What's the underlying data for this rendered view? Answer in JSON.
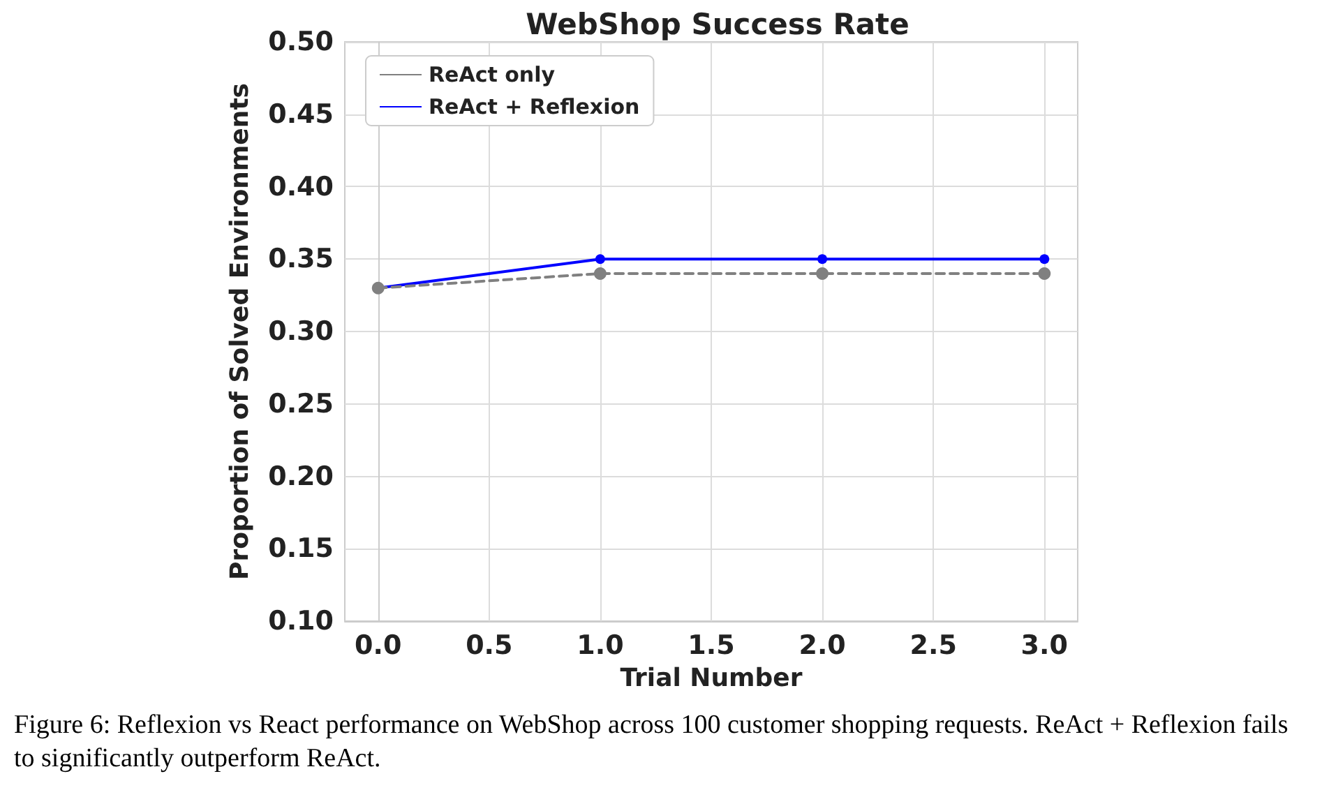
{
  "chart_data": {
    "type": "line",
    "title": "WebShop Success Rate",
    "xlabel": "Trial Number",
    "ylabel": "Proportion of Solved Environments",
    "x": [
      0,
      1,
      2,
      3
    ],
    "series": [
      {
        "name": "ReAct only",
        "color": "#808080",
        "line_style": "dashed",
        "values": [
          0.33,
          0.34,
          0.34,
          0.34
        ]
      },
      {
        "name": "ReAct + Reflexion",
        "color": "#0000ff",
        "line_style": "solid",
        "values": [
          0.33,
          0.35,
          0.35,
          0.35
        ]
      }
    ],
    "xlim": [
      -0.15,
      3.15
    ],
    "xticks": [
      {
        "value": 0,
        "label": "0.0"
      },
      {
        "value": 0.5,
        "label": "0.5"
      },
      {
        "value": 1,
        "label": "1.0"
      },
      {
        "value": 1.5,
        "label": "1.5"
      },
      {
        "value": 2,
        "label": "2.0"
      },
      {
        "value": 2.5,
        "label": "2.5"
      },
      {
        "value": 3,
        "label": "3.0"
      }
    ],
    "ylim": [
      0.1,
      0.5
    ],
    "yticks": [
      {
        "value": 0.1,
        "label": "0.10"
      },
      {
        "value": 0.15,
        "label": "0.15"
      },
      {
        "value": 0.2,
        "label": "0.20"
      },
      {
        "value": 0.25,
        "label": "0.25"
      },
      {
        "value": 0.3,
        "label": "0.30"
      },
      {
        "value": 0.35,
        "label": "0.35"
      },
      {
        "value": 0.4,
        "label": "0.40"
      },
      {
        "value": 0.45,
        "label": "0.45"
      },
      {
        "value": 0.5,
        "label": "0.50"
      }
    ],
    "grid": true,
    "legend": "top left",
    "marker": "circle",
    "annotations": [
      "Figure 6: Reflexion vs React performance on WebShop across 100 customer shopping requests. ReAct + Reflexion fails to significantly outperform ReAct."
    ]
  }
}
